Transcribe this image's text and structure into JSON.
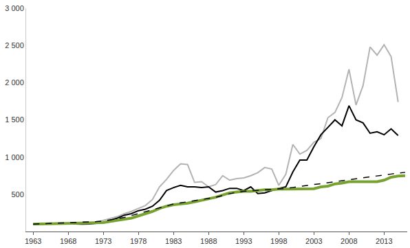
{
  "chart_data": {
    "type": "line",
    "x": [
      1963,
      1964,
      1965,
      1966,
      1967,
      1968,
      1969,
      1970,
      1971,
      1972,
      1973,
      1974,
      1975,
      1976,
      1977,
      1978,
      1979,
      1980,
      1981,
      1982,
      1983,
      1984,
      1985,
      1986,
      1987,
      1988,
      1989,
      1990,
      1991,
      1992,
      1993,
      1994,
      1995,
      1996,
      1997,
      1998,
      1999,
      2000,
      2001,
      2002,
      2003,
      2004,
      2005,
      2006,
      2007,
      2008,
      2009,
      2010,
      2011,
      2012,
      2013,
      2014,
      2015,
      2016
    ],
    "series": [
      {
        "color": "#b3b3b3",
        "line_style": "solid",
        "values": [
          100,
          100,
          102,
          105,
          108,
          110,
          108,
          110,
          115,
          125,
          150,
          180,
          200,
          240,
          270,
          310,
          350,
          430,
          600,
          700,
          820,
          910,
          900,
          660,
          670,
          600,
          630,
          750,
          690,
          710,
          720,
          750,
          790,
          860,
          840,
          620,
          770,
          1170,
          1040,
          1090,
          1200,
          1250,
          1530,
          1600,
          1800,
          2180,
          1700,
          1960,
          2480,
          2370,
          2510,
          2350,
          1740,
          null
        ]
      },
      {
        "color": "#000000",
        "line_style": "solid",
        "values": [
          100,
          102,
          105,
          108,
          110,
          105,
          100,
          100,
          102,
          108,
          120,
          150,
          180,
          220,
          240,
          280,
          300,
          340,
          420,
          550,
          590,
          620,
          600,
          600,
          590,
          600,
          530,
          550,
          580,
          580,
          550,
          600,
          510,
          520,
          550,
          580,
          600,
          800,
          960,
          960,
          1140,
          1300,
          1400,
          1500,
          1420,
          1690,
          1500,
          1460,
          1320,
          1340,
          1300,
          1380,
          1290,
          null
        ]
      },
      {
        "color": "#77a22f",
        "line_style": "solid",
        "values": [
          100,
          102,
          104,
          106,
          108,
          110,
          110,
          112,
          114,
          116,
          120,
          135,
          150,
          160,
          180,
          210,
          240,
          270,
          310,
          340,
          360,
          370,
          380,
          400,
          420,
          440,
          460,
          490,
          520,
          530,
          540,
          540,
          550,
          560,
          560,
          570,
          570,
          570,
          570,
          570,
          575,
          600,
          610,
          640,
          650,
          670,
          670,
          675,
          670,
          670,
          690,
          730,
          745,
          750
        ]
      },
      {
        "color": "#000000",
        "line_style": "dash",
        "values": [
          100,
          103,
          106,
          109,
          112,
          115,
          118,
          122,
          127,
          133,
          140,
          155,
          170,
          190,
          215,
          240,
          265,
          290,
          320,
          345,
          370,
          385,
          400,
          415,
          428,
          440,
          460,
          485,
          510,
          528,
          540,
          546,
          552,
          558,
          564,
          570,
          580,
          592,
          605,
          617,
          630,
          645,
          660,
          675,
          688,
          700,
          712,
          724,
          736,
          748,
          760,
          772,
          784,
          795
        ]
      }
    ],
    "xlim": [
      1962,
      2016.3
    ],
    "xticks": [
      1963,
      1968,
      1973,
      1978,
      1983,
      1988,
      1993,
      1998,
      2003,
      2008,
      2013
    ],
    "ylim": [
      0,
      3000
    ],
    "yticks": [
      500,
      {
        "value": 1000,
        "label": "1 000"
      },
      {
        "value": 1500,
        "label": "1 500"
      },
      {
        "value": 2000,
        "label": "2 000"
      },
      {
        "value": 2500,
        "label": "2 500"
      },
      {
        "value": 3000,
        "label": "3 000"
      }
    ],
    "grid": false
  }
}
